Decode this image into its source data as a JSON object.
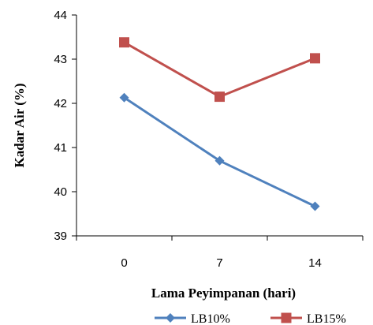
{
  "chart_data": {
    "type": "line",
    "title": "",
    "xlabel": "Lama Peyimpanan (hari)",
    "ylabel": "Kadar Air (%)",
    "categories": [
      "0",
      "7",
      "14"
    ],
    "ylim": [
      39,
      44
    ],
    "yticks": [
      39,
      40,
      41,
      42,
      43,
      44
    ],
    "grid": false,
    "legend_position": "bottom",
    "series": [
      {
        "name": "LB10%",
        "values": [
          42.13,
          40.7,
          39.67
        ],
        "color": "#4F81BD",
        "marker": "diamond"
      },
      {
        "name": "LB15%",
        "values": [
          43.38,
          42.15,
          43.02
        ],
        "color": "#C0504D",
        "marker": "square"
      }
    ]
  }
}
